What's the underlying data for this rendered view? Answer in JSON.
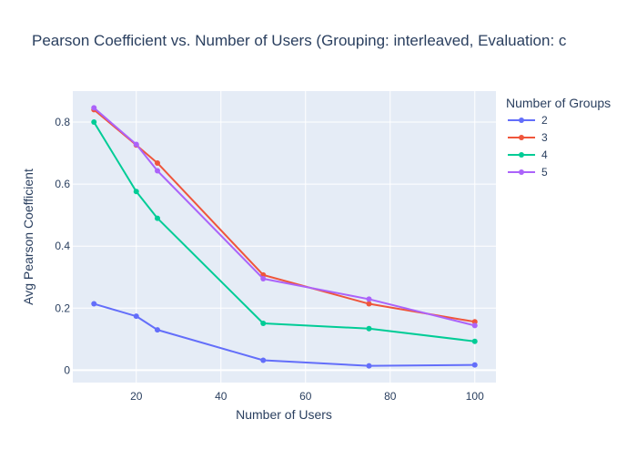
{
  "chart_data": {
    "type": "line",
    "title": "Pearson Coefficient vs. Number of Users (Grouping: interleaved, Evaluation: c",
    "xlabel": "Number of Users",
    "ylabel": "Avg Pearson Coefficient",
    "xlim": [
      5,
      105
    ],
    "ylim": [
      -0.04,
      0.9
    ],
    "x_ticks": [
      20,
      40,
      60,
      80,
      100
    ],
    "y_ticks": [
      0,
      0.2,
      0.4,
      0.6,
      0.8
    ],
    "y_tick_labels": [
      "0",
      "0.2",
      "0.4",
      "0.6",
      "0.8"
    ],
    "grid": true,
    "legend_title": "Number of Groups",
    "legend_position": "top-right",
    "x": [
      10,
      20,
      25,
      50,
      75,
      100
    ],
    "series": [
      {
        "name": "2",
        "color": "#636efa",
        "values": [
          0.214,
          0.174,
          0.13,
          0.032,
          0.014,
          0.017
        ]
      },
      {
        "name": "3",
        "color": "#ef553b",
        "values": [
          0.84,
          0.726,
          0.668,
          0.307,
          0.214,
          0.156
        ]
      },
      {
        "name": "4",
        "color": "#00cc96",
        "values": [
          0.8,
          0.576,
          0.49,
          0.151,
          0.134,
          0.093
        ]
      },
      {
        "name": "5",
        "color": "#ab63fa",
        "values": [
          0.846,
          0.728,
          0.643,
          0.295,
          0.229,
          0.144
        ]
      }
    ]
  }
}
